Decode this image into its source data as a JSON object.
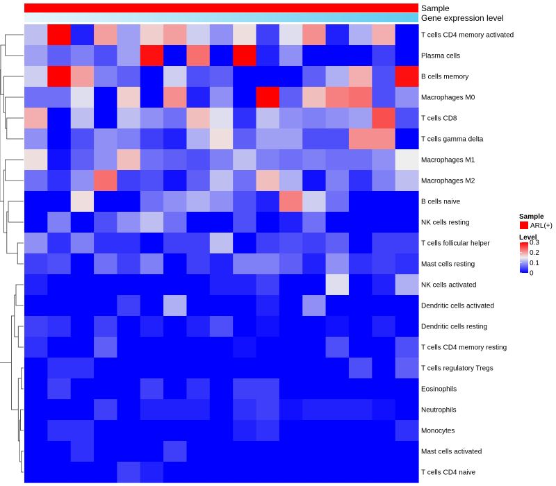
{
  "chart_data": {
    "type": "heatmap",
    "title": "",
    "annotations": [
      {
        "name": "Sample",
        "kind": "categorical",
        "values": [
          "ARL(+)"
        ],
        "colors": [
          "#ff0000"
        ]
      },
      {
        "name": "Gene expression level",
        "kind": "gradient",
        "colors": [
          "#e9f6fb",
          "#5ecbf0"
        ]
      }
    ],
    "rows": [
      "T cells CD4 memory activated",
      "Plasma cells",
      "B cells memory",
      "Macrophages M0",
      "T cells CD8",
      "T cells gamma delta",
      "Macrophages M1",
      "Macrophages M2",
      "B cells naive",
      "NK cells resting",
      "T cells follicular helper",
      "Mast cells resting",
      "NK cells activated",
      "Dendritic cells activated",
      "Dendritic cells resting",
      "T cells CD4 memory resting",
      "T cells regulatory  Tregs",
      "Eosinophils",
      "Neutrophils",
      "Monocytes",
      "Mast cells activated",
      "T cells CD4 naive"
    ],
    "n_columns": 17,
    "values": [
      [
        0.12,
        0.3,
        0.02,
        0.2,
        0.1,
        0.17,
        0.2,
        0.13,
        0.09,
        0.16,
        0.04,
        0.14,
        0.21,
        0.02,
        0.11,
        0.19,
        0.0
      ],
      [
        0.1,
        0.06,
        0.08,
        0.05,
        0.1,
        0.29,
        0.0,
        0.23,
        0.0,
        0.3,
        0.02,
        0.09,
        0.0,
        0.0,
        0.0,
        0.04,
        0.0
      ],
      [
        0.13,
        0.3,
        0.2,
        0.08,
        0.06,
        0.0,
        0.13,
        0.05,
        0.06,
        0.0,
        0.0,
        0.0,
        0.06,
        0.11,
        0.19,
        0.05,
        0.29
      ],
      [
        0.07,
        0.07,
        0.14,
        0.0,
        0.17,
        0.0,
        0.21,
        0.02,
        0.09,
        0.0,
        0.3,
        0.06,
        0.18,
        0.22,
        0.23,
        0.05,
        0.09
      ],
      [
        0.19,
        0.0,
        0.12,
        0.0,
        0.12,
        0.09,
        0.07,
        0.18,
        0.14,
        0.03,
        0.12,
        0.09,
        0.08,
        0.09,
        0.1,
        0.25,
        0.05
      ],
      [
        0.09,
        0.0,
        0.05,
        0.09,
        0.08,
        0.04,
        0.02,
        0.11,
        0.16,
        0.06,
        0.1,
        0.1,
        0.05,
        0.05,
        0.21,
        0.21,
        0.0
      ],
      [
        0.16,
        0.01,
        0.06,
        0.09,
        0.18,
        0.07,
        0.06,
        0.05,
        0.08,
        0.12,
        0.08,
        0.07,
        0.08,
        0.07,
        0.07,
        0.09,
        0.15
      ],
      [
        0.07,
        0.03,
        0.09,
        0.23,
        0.04,
        0.05,
        0.01,
        0.06,
        0.12,
        0.07,
        0.18,
        0.11,
        0.01,
        0.08,
        0.03,
        0.08,
        0.12
      ],
      [
        0.0,
        0.0,
        0.16,
        0.0,
        0.0,
        0.07,
        0.09,
        0.11,
        0.09,
        0.05,
        0.02,
        0.22,
        0.13,
        0.07,
        0.0,
        0.0,
        0.0
      ],
      [
        0.0,
        0.08,
        0.0,
        0.05,
        0.09,
        0.12,
        0.07,
        0.0,
        0.0,
        0.05,
        0.0,
        0.02,
        0.07,
        0.0,
        0.0,
        0.0,
        0.0
      ],
      [
        0.09,
        0.03,
        0.08,
        0.03,
        0.03,
        0.0,
        0.04,
        0.04,
        0.12,
        0.0,
        0.04,
        0.05,
        0.04,
        0.06,
        0.0,
        0.04,
        0.04
      ],
      [
        0.04,
        0.05,
        0.0,
        0.07,
        0.04,
        0.08,
        0.0,
        0.04,
        0.02,
        0.08,
        0.08,
        0.06,
        0.02,
        0.09,
        0.03,
        0.04,
        0.03
      ],
      [
        0.02,
        0.0,
        0.0,
        0.0,
        0.0,
        0.0,
        0.0,
        0.0,
        0.02,
        0.02,
        0.04,
        0.0,
        0.0,
        0.14,
        0.0,
        0.02,
        0.11
      ],
      [
        0.0,
        0.0,
        0.0,
        0.0,
        0.04,
        0.0,
        0.11,
        0.0,
        0.0,
        0.0,
        0.02,
        0.0,
        0.09,
        0.0,
        0.0,
        0.0,
        0.0
      ],
      [
        0.04,
        0.03,
        0.0,
        0.04,
        0.0,
        0.02,
        0.0,
        0.02,
        0.05,
        0.0,
        0.01,
        0.0,
        0.0,
        0.01,
        0.0,
        0.02,
        0.0
      ],
      [
        0.03,
        0.0,
        0.0,
        0.06,
        0.0,
        0.0,
        0.0,
        0.0,
        0.0,
        0.01,
        0.0,
        0.0,
        0.0,
        0.05,
        0.0,
        0.0,
        0.05
      ],
      [
        0.0,
        0.03,
        0.03,
        0.0,
        0.0,
        0.0,
        0.0,
        0.0,
        0.0,
        0.0,
        0.0,
        0.0,
        0.0,
        0.0,
        0.05,
        0.0,
        0.06
      ],
      [
        0.0,
        0.04,
        0.0,
        0.0,
        0.0,
        0.04,
        0.0,
        0.03,
        0.0,
        0.04,
        0.04,
        0.0,
        0.0,
        0.0,
        0.0,
        0.0,
        0.0
      ],
      [
        0.0,
        0.0,
        0.0,
        0.04,
        0.0,
        0.02,
        0.02,
        0.02,
        0.0,
        0.03,
        0.04,
        0.01,
        0.02,
        0.02,
        0.02,
        0.01,
        0.0
      ],
      [
        0.0,
        0.03,
        0.03,
        0.0,
        0.0,
        0.0,
        0.0,
        0.0,
        0.0,
        0.02,
        0.03,
        0.0,
        0.0,
        0.0,
        0.0,
        0.0,
        0.03
      ],
      [
        0.0,
        0.0,
        0.03,
        0.0,
        0.0,
        0.0,
        0.04,
        0.0,
        0.0,
        0.0,
        0.0,
        0.0,
        0.0,
        0.0,
        0.0,
        0.0,
        0.0
      ],
      [
        0.0,
        0.0,
        0.0,
        0.0,
        0.04,
        0.02,
        0.0,
        0.0,
        0.0,
        0.0,
        0.0,
        0.0,
        0.0,
        0.0,
        0.0,
        0.0,
        0.0
      ]
    ],
    "color_scale": {
      "min": 0,
      "max": 0.3,
      "stops": [
        {
          "value": 0,
          "color": "#0000ff"
        },
        {
          "value": 0.15,
          "color": "#eeeeee"
        },
        {
          "value": 0.3,
          "color": "#ff0000"
        }
      ]
    },
    "dendrogram": "rows",
    "legend": {
      "position": "right",
      "sample_title": "Sample",
      "sample_entry": "ARL(+)",
      "level_title": "Level",
      "ticks": [
        "0.3",
        "0.2",
        "0.1",
        "0"
      ],
      "tick_values": [
        0.3,
        0.2,
        0.1,
        0
      ]
    }
  }
}
